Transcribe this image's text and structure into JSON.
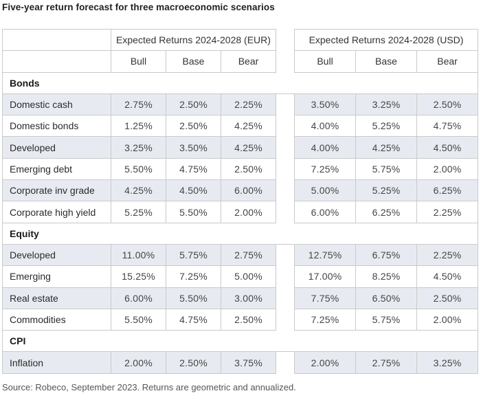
{
  "title": "Five-year return forecast for three macroeconomic scenarios",
  "headers": {
    "eur": "Expected Returns 2024-2028 (EUR)",
    "usd": "Expected Returns 2024-2028 (USD)",
    "scenarios": [
      "Bull",
      "Base",
      "Bear"
    ]
  },
  "sections": [
    {
      "name": "Bonds",
      "rows": [
        {
          "label": "Domestic cash",
          "eur": [
            "2.75%",
            "2.50%",
            "2.25%"
          ],
          "usd": [
            "3.50%",
            "3.25%",
            "2.50%"
          ],
          "shaded": true
        },
        {
          "label": "Domestic bonds",
          "eur": [
            "1.25%",
            "2.50%",
            "4.25%"
          ],
          "usd": [
            "4.00%",
            "5.25%",
            "4.75%"
          ],
          "shaded": false
        },
        {
          "label": "Developed",
          "eur": [
            "3.25%",
            "3.50%",
            "4.25%"
          ],
          "usd": [
            "4.00%",
            "4.25%",
            "4.50%"
          ],
          "shaded": true
        },
        {
          "label": "Emerging debt",
          "eur": [
            "5.50%",
            "4.75%",
            "2.50%"
          ],
          "usd": [
            "7.25%",
            "5.75%",
            "2.00%"
          ],
          "shaded": false
        },
        {
          "label": "Corporate inv grade",
          "eur": [
            "4.25%",
            "4.50%",
            "6.00%"
          ],
          "usd": [
            "5.00%",
            "5.25%",
            "6.25%"
          ],
          "shaded": true
        },
        {
          "label": "Corporate high yield",
          "eur": [
            "5.25%",
            "5.50%",
            "2.00%"
          ],
          "usd": [
            "6.00%",
            "6.25%",
            "2.25%"
          ],
          "shaded": false
        }
      ]
    },
    {
      "name": "Equity",
      "rows": [
        {
          "label": "Developed",
          "eur": [
            "11.00%",
            "5.75%",
            "2.75%"
          ],
          "usd": [
            "12.75%",
            "6.75%",
            "2.25%"
          ],
          "shaded": true
        },
        {
          "label": "Emerging",
          "eur": [
            "15.25%",
            "7.25%",
            "5.00%"
          ],
          "usd": [
            "17.00%",
            "8.25%",
            "4.50%"
          ],
          "shaded": false
        },
        {
          "label": "Real estate",
          "eur": [
            "6.00%",
            "5.50%",
            "3.00%"
          ],
          "usd": [
            "7.75%",
            "6.50%",
            "2.50%"
          ],
          "shaded": true
        },
        {
          "label": "Commodities",
          "eur": [
            "5.50%",
            "4.75%",
            "2.50%"
          ],
          "usd": [
            "7.25%",
            "5.75%",
            "2.00%"
          ],
          "shaded": false
        }
      ]
    },
    {
      "name": "CPI",
      "rows": [
        {
          "label": "Inflation",
          "eur": [
            "2.00%",
            "2.50%",
            "3.75%"
          ],
          "usd": [
            "2.00%",
            "2.75%",
            "3.25%"
          ],
          "shaded": true
        }
      ]
    }
  ],
  "source": "Source: Robeco, September 2023. Returns are geometric and annualized."
}
